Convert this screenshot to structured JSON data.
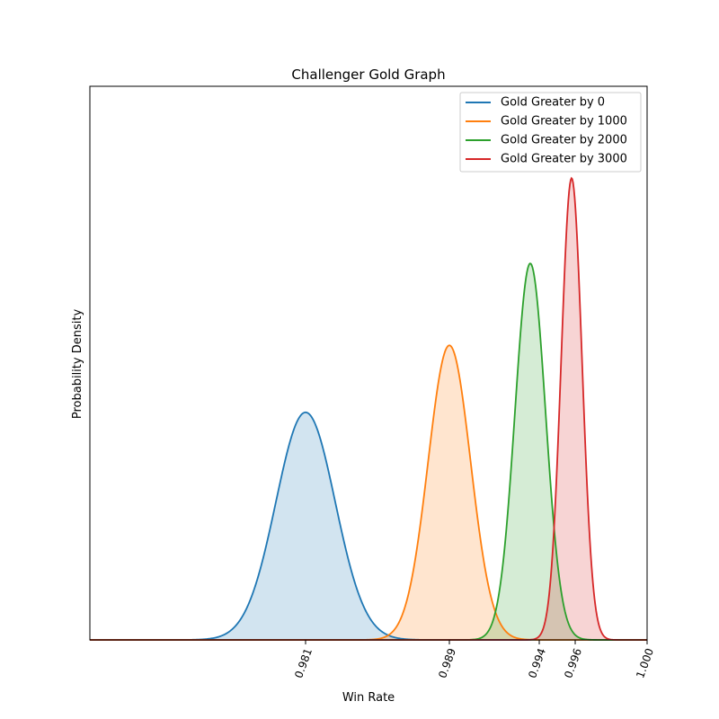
{
  "chart_data": {
    "type": "area",
    "title": "Challenger Gold Graph",
    "xlabel": "Win Rate",
    "ylabel": "Probability Density",
    "xlim": [
      0.969,
      1.0
    ],
    "ylim": [
      0,
      1.0
    ],
    "y_ticks_shown": false,
    "grid": false,
    "legend_position": "top-right",
    "x_ticks": [
      {
        "value": 0.981,
        "label": "0.981"
      },
      {
        "value": 0.989,
        "label": "0.989"
      },
      {
        "value": 0.994,
        "label": "0.994"
      },
      {
        "value": 0.996,
        "label": "0.996"
      },
      {
        "value": 1.0,
        "label": "1.000"
      }
    ],
    "series": [
      {
        "name": "Gold Greater by 0",
        "color": "#1f77b4",
        "mean": 0.981,
        "sd": 0.00165,
        "peak": 0.411
      },
      {
        "name": "Gold Greater by 1000",
        "color": "#ff7f0e",
        "mean": 0.989,
        "sd": 0.00118,
        "peak": 0.532
      },
      {
        "name": "Gold Greater by 2000",
        "color": "#2ca02c",
        "mean": 0.9935,
        "sd": 0.00085,
        "peak": 0.68
      },
      {
        "name": "Gold Greater by 3000",
        "color": "#d62728",
        "mean": 0.9958,
        "sd": 0.00058,
        "peak": 0.834
      }
    ]
  }
}
